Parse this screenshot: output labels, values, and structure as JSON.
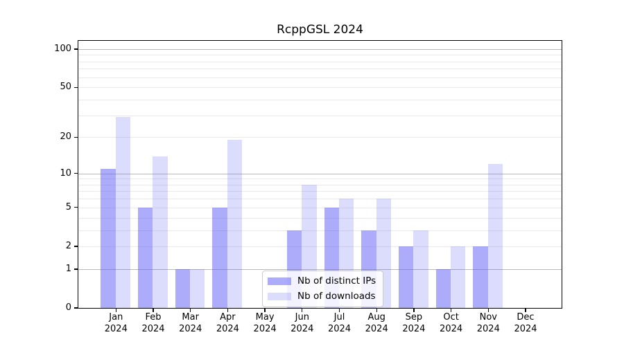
{
  "chart_data": {
    "type": "bar",
    "title": "RcppGSL 2024",
    "categories": [
      "Jan",
      "Feb",
      "Mar",
      "Apr",
      "May",
      "Jun",
      "Jul",
      "Aug",
      "Sep",
      "Oct",
      "Nov",
      "Dec"
    ],
    "x_axis": {
      "year_line": "2024"
    },
    "series": [
      {
        "name": "Nb of distinct IPs",
        "color": "rgba(95,95,248,0.52)",
        "values": [
          11,
          5,
          1,
          5,
          0,
          3,
          5,
          3,
          2,
          1,
          2,
          0
        ]
      },
      {
        "name": "Nb of downloads",
        "color": "rgba(95,95,248,0.22)",
        "values": [
          29,
          14,
          1,
          19,
          0,
          8,
          6,
          6,
          3,
          2,
          12,
          0
        ]
      }
    ],
    "y_axis": {
      "scale": "log1p",
      "ylim": [
        0,
        116
      ],
      "tick_values": [
        0,
        1,
        2,
        5,
        10,
        20,
        50,
        100
      ],
      "tick_labels": [
        "0",
        "1",
        "2",
        "5",
        "10",
        "20",
        "50",
        "100"
      ],
      "major_gridlines": [
        1,
        10,
        100
      ],
      "minor_gridlines": [
        2,
        3,
        4,
        5,
        6,
        7,
        8,
        9,
        20,
        30,
        40,
        50,
        60,
        70,
        80,
        90
      ]
    },
    "legend_position": "lower-center",
    "grid": "on"
  },
  "colors": {
    "major_grid": "#b8b8b8",
    "minor_grid": "#e9e9e9",
    "axis": "#000000",
    "legend_border": "#cccccc",
    "legend_bg": "rgba(255,255,255,0.85)"
  }
}
